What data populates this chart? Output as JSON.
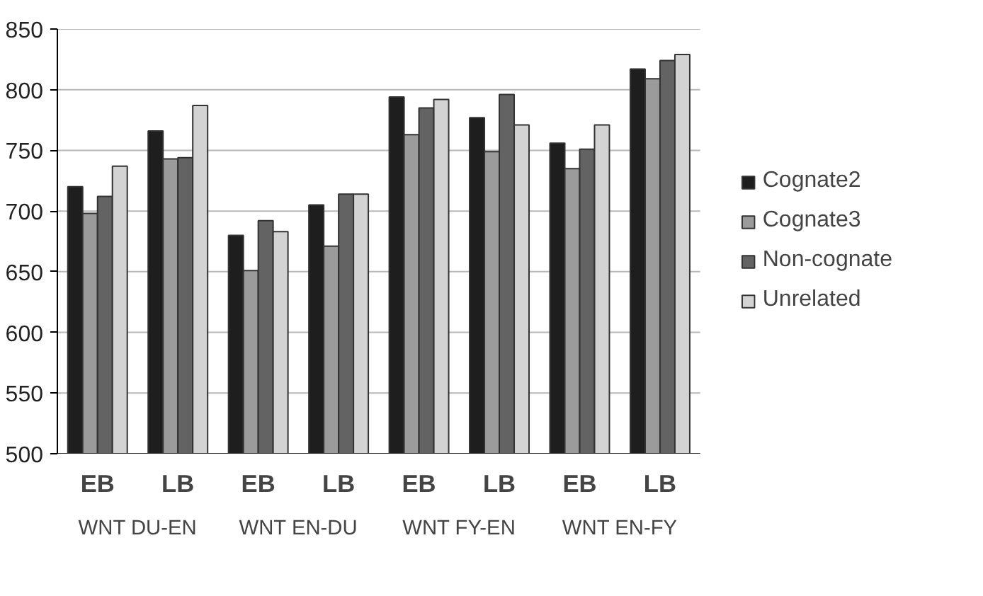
{
  "chart_data": {
    "type": "bar",
    "categories": [
      "EB",
      "LB",
      "EB",
      "LB",
      "EB",
      "LB",
      "EB",
      "LB"
    ],
    "series": [
      {
        "name": "Cognate2",
        "color": "#1e1e1e",
        "values": [
          720,
          766,
          680,
          705,
          794,
          777,
          756,
          817
        ]
      },
      {
        "name": "Cognate3",
        "color": "#9b9b9b",
        "values": [
          698,
          743,
          651,
          671,
          763,
          749,
          735,
          809
        ]
      },
      {
        "name": "Non-cognate",
        "color": "#636363",
        "values": [
          712,
          744,
          692,
          714,
          785,
          796,
          751,
          824
        ]
      },
      {
        "name": "Unrelated",
        "color": "#d3d3d3",
        "values": [
          737,
          787,
          683,
          714,
          792,
          771,
          771,
          829
        ]
      }
    ],
    "annotations": [
      "WNT DU-EN",
      "WNT EN-DU",
      "WNT FY-EN",
      "WNT EN-FY"
    ],
    "ylim": [
      500,
      850
    ],
    "yticks": [
      500,
      550,
      600,
      650,
      700,
      750,
      800,
      850
    ],
    "grid": "y",
    "legend": "right"
  }
}
